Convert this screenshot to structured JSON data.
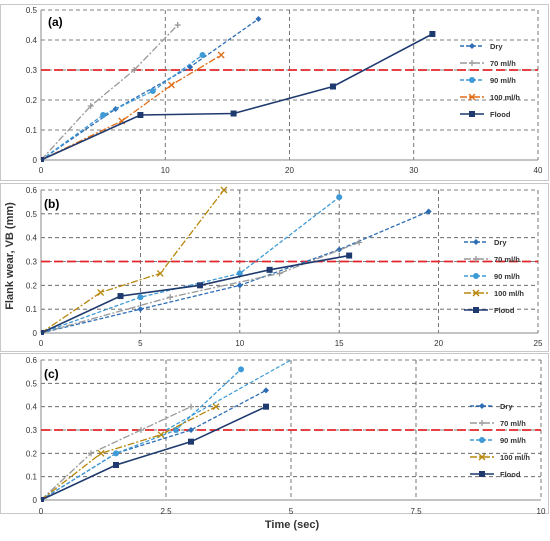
{
  "ylabel": "Flank wear, VB (mm)",
  "xlabel": "Time (sec)",
  "chart_data": [
    {
      "type": "line",
      "panel_label": "(a)",
      "xlim": [
        0,
        40
      ],
      "ylim": [
        0,
        0.5
      ],
      "x_ticks": [
        "0",
        "10",
        "20",
        "30",
        "40"
      ],
      "y_ticks": [
        "0",
        "0.1",
        "0.2",
        "0.3",
        "0.4",
        "0.5"
      ],
      "threshold": 0.3,
      "legend_position": "right",
      "series": [
        {
          "name": "Dry",
          "color": "#2e6db4",
          "dash": "4,2",
          "marker": "diamond",
          "x": [
            0,
            6,
            12,
            17.5
          ],
          "y": [
            0,
            0.17,
            0.31,
            0.47
          ]
        },
        {
          "name": "70 ml/h",
          "color": "#999999",
          "dash": "7,2,2,2",
          "marker": "plus",
          "x": [
            0,
            4,
            7.5,
            11
          ],
          "y": [
            0,
            0.18,
            0.3,
            0.45
          ]
        },
        {
          "name": "90 ml/h",
          "color": "#3e9ad6",
          "dash": "4,2",
          "marker": "circle",
          "x": [
            0,
            5,
            9,
            13
          ],
          "y": [
            0,
            0.15,
            0.23,
            0.35
          ]
        },
        {
          "name": "100 ml/h",
          "color": "#e06d16",
          "dash": "7,2,2,2",
          "marker": "x",
          "x": [
            0,
            6.5,
            10.5,
            14.5
          ],
          "y": [
            0,
            0.13,
            0.25,
            0.35
          ]
        },
        {
          "name": "Flood",
          "color": "#1f3a6e",
          "dash": "",
          "marker": "square",
          "x": [
            0,
            8,
            15.5,
            23.5,
            31.5
          ],
          "y": [
            0,
            0.15,
            0.155,
            0.245,
            0.42
          ]
        }
      ]
    },
    {
      "type": "line",
      "panel_label": "(b)",
      "xlim": [
        0,
        25
      ],
      "ylim": [
        0,
        0.6
      ],
      "x_ticks": [
        "0",
        "5",
        "10",
        "15",
        "20",
        "25"
      ],
      "y_ticks": [
        "0",
        "0.1",
        "0.2",
        "0.3",
        "0.4",
        "0.5",
        "0.6"
      ],
      "threshold": 0.3,
      "legend_position": "right",
      "series": [
        {
          "name": "Dry",
          "color": "#2e6db4",
          "dash": "4,2",
          "marker": "diamond",
          "x": [
            0,
            5,
            10,
            15,
            19.5
          ],
          "y": [
            0,
            0.1,
            0.2,
            0.35,
            0.51
          ]
        },
        {
          "name": "70 ml/h",
          "color": "#999999",
          "dash": "7,2,2,2",
          "marker": "plus",
          "x": [
            0,
            6.5,
            12,
            16
          ],
          "y": [
            0,
            0.15,
            0.25,
            0.38
          ]
        },
        {
          "name": "90 ml/h",
          "color": "#3e9ad6",
          "dash": "4,2",
          "marker": "circle",
          "x": [
            0,
            5,
            10,
            15
          ],
          "y": [
            0,
            0.15,
            0.25,
            0.57
          ]
        },
        {
          "name": "100 ml/h",
          "color": "#b8860b",
          "dash": "7,2,2,2",
          "marker": "x",
          "x": [
            0,
            3,
            6,
            9.2
          ],
          "y": [
            0,
            0.17,
            0.25,
            0.6
          ]
        },
        {
          "name": "Flood",
          "color": "#1f3a6e",
          "dash": "",
          "marker": "square",
          "x": [
            0,
            4,
            8,
            11.5,
            15.5
          ],
          "y": [
            0,
            0.155,
            0.2,
            0.265,
            0.325
          ]
        }
      ]
    },
    {
      "type": "line",
      "panel_label": "(c)",
      "xlim": [
        0,
        10
      ],
      "ylim": [
        0,
        0.6
      ],
      "x_ticks": [
        "0",
        "2.5",
        "5",
        "7.5",
        "10"
      ],
      "y_ticks": [
        "0",
        "0.1",
        "0.2",
        "0.3",
        "0.4",
        "0.5",
        "0.6"
      ],
      "threshold": 0.3,
      "legend_position": "right",
      "series": [
        {
          "name": "Dry",
          "color": "#2e6db4",
          "dash": "4,2",
          "marker": "diamond",
          "x": [
            0,
            1.5,
            3,
            4.5
          ],
          "y": [
            0,
            0.2,
            0.3,
            0.47
          ]
        },
        {
          "name": "70 ml/h",
          "color": "#999999",
          "dash": "7,2,2,2",
          "marker": "plus",
          "x": [
            0,
            1,
            2,
            3
          ],
          "y": [
            0,
            0.2,
            0.3,
            0.4
          ]
        },
        {
          "name": "90 ml/h",
          "color": "#3e9ad6",
          "dash": "4,2",
          "marker": "circle",
          "x": [
            0,
            1.5,
            2.7,
            4
          ],
          "y": [
            0,
            0.2,
            0.3,
            0.56
          ]
        },
        {
          "name": "100 ml/h",
          "color": "#b8860b",
          "dash": "7,2,2,2",
          "marker": "x",
          "x": [
            0,
            1.2,
            2.4,
            3.5
          ],
          "y": [
            0,
            0.2,
            0.28,
            0.4
          ]
        },
        {
          "name": "Flood",
          "color": "#1f3a6e",
          "dash": "",
          "marker": "square",
          "x": [
            0,
            1.5,
            3,
            4.5
          ],
          "y": [
            0,
            0.15,
            0.25,
            0.4
          ]
        }
      ],
      "extra_line": {
        "color": "#3e9ad6",
        "dash": "4,2",
        "x": [
          2.5,
          5
        ],
        "y": [
          0.3,
          0.6
        ]
      }
    }
  ]
}
